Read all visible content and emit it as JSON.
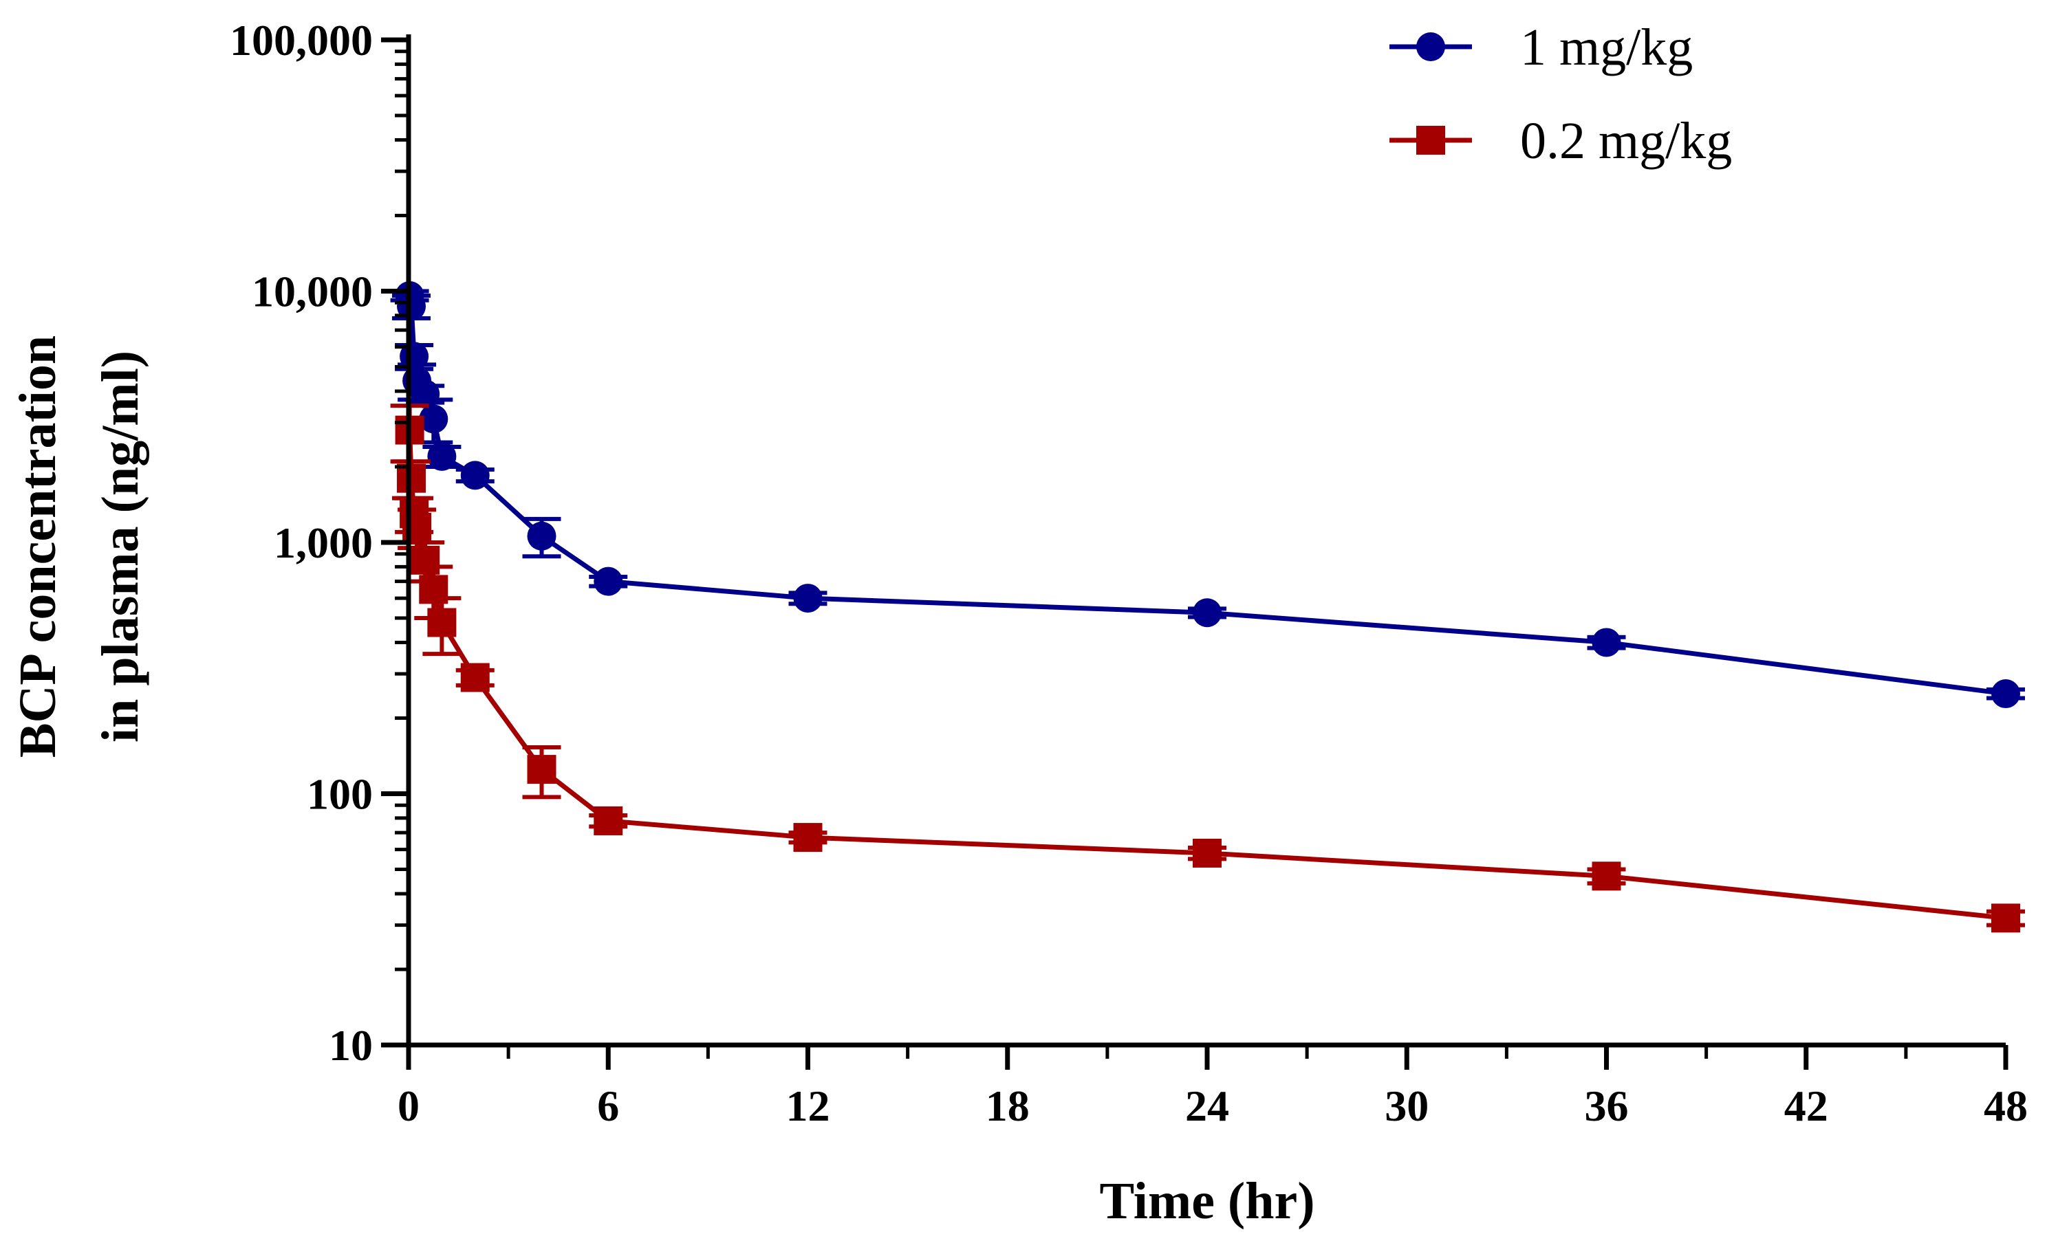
{
  "chart_data": {
    "type": "line",
    "title": "",
    "xlabel": "Time (hr)",
    "ylabel_lines": [
      "BCP concentration",
      "in plasma (ng/ml)"
    ],
    "xlim": [
      0,
      48
    ],
    "ylim": [
      10,
      100000
    ],
    "yscale": "log",
    "x_ticks": [
      0,
      6,
      12,
      18,
      24,
      30,
      36,
      42,
      48
    ],
    "x_tick_labels": [
      "0",
      "6",
      "12",
      "18",
      "24",
      "30",
      "36",
      "42",
      "48"
    ],
    "y_ticks": [
      10,
      100,
      1000,
      10000,
      100000
    ],
    "y_tick_labels": [
      "10",
      "100",
      "1,000",
      "10,000",
      "100,000"
    ],
    "legend_position": "top-right",
    "series": [
      {
        "name": "1 mg/kg",
        "color": "#00008b",
        "marker": "circle",
        "x": [
          0.033,
          0.083,
          0.167,
          0.25,
          0.5,
          0.75,
          1,
          2,
          4,
          6,
          12,
          24,
          36,
          48
        ],
        "y": [
          9600,
          8700,
          5500,
          4400,
          3900,
          3100,
          2200,
          1850,
          1060,
          700,
          600,
          525,
          400,
          250
        ],
        "err": [
          400,
          900,
          600,
          700,
          300,
          600,
          200,
          100,
          180,
          30,
          30,
          20,
          20,
          10
        ]
      },
      {
        "name": "0.2 mg/kg",
        "color": "#a50000",
        "marker": "square",
        "x": [
          0.033,
          0.083,
          0.167,
          0.25,
          0.5,
          0.75,
          1,
          2,
          4,
          6,
          12,
          24,
          36,
          48
        ],
        "y": [
          2800,
          1800,
          1300,
          1150,
          850,
          650,
          480,
          290,
          125,
          78,
          67,
          58,
          47,
          32
        ],
        "err": [
          700,
          300,
          200,
          200,
          150,
          150,
          120,
          20,
          28,
          4,
          3,
          3,
          3,
          2
        ]
      }
    ]
  }
}
